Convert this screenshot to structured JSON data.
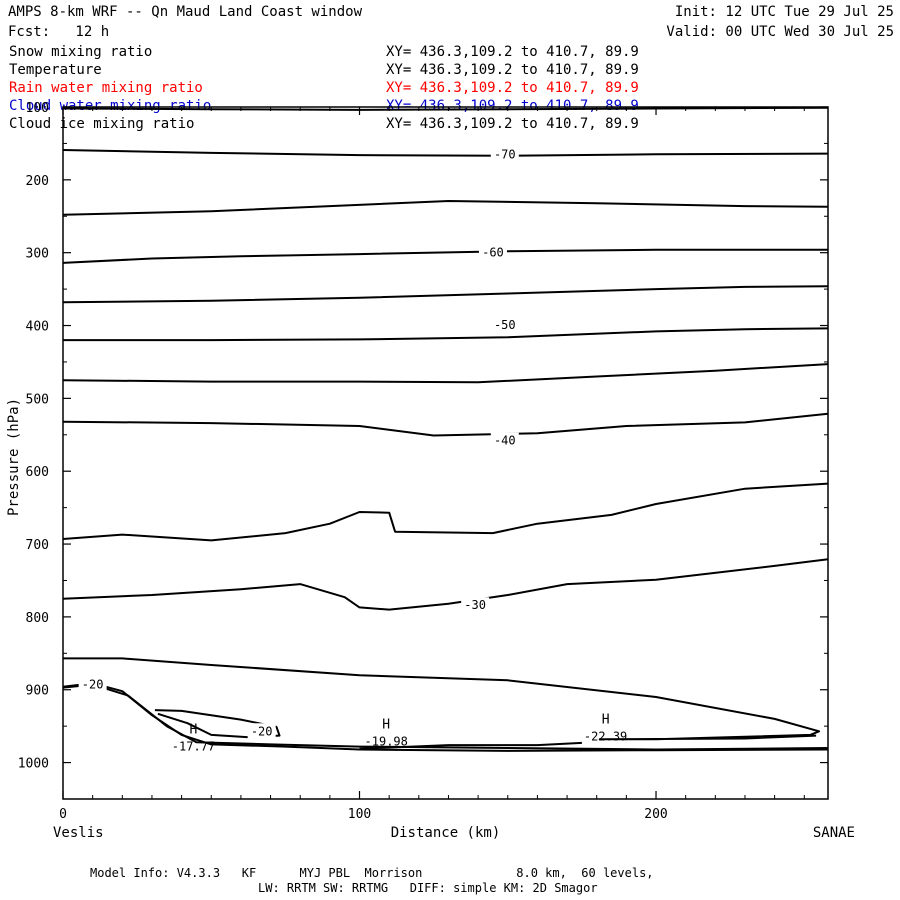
{
  "header": {
    "title": "AMPS 8-km WRF -- Qn Maud Land Coast window",
    "init": "Init: 12 UTC Tue 29 Jul 25",
    "fcst": "Fcst:   12 h",
    "valid": "Valid: 00 UTC Wed 30 Jul 25"
  },
  "legend": [
    {
      "name": "Snow mixing ratio",
      "xy": "XY= 436.3,109.2 to 410.7, 89.9",
      "color": "#000000"
    },
    {
      "name": "Temperature",
      "xy": "XY= 436.3,109.2 to 410.7, 89.9",
      "color": "#000000"
    },
    {
      "name": "Rain water mixing ratio",
      "xy": "XY= 436.3,109.2 to 410.7, 89.9",
      "color": "#ff0000"
    },
    {
      "name": "Cloud water mixing ratio",
      "xy": "XY= 436.3,109.2 to 410.7, 89.9",
      "color": "#0000cc"
    },
    {
      "name": "Cloud ice mixing ratio",
      "xy": "XY= 436.3,109.2 to 410.7, 89.9",
      "color": "#000000"
    }
  ],
  "footer": {
    "line1": "Model Info: V4.3.3   KF      MYJ PBL  Morrison             8.0 km,  60 levels,",
    "line2": "LW: RRTM SW: RRTMG   DIFF: simple KM: 2D Smagor"
  },
  "chart_data": {
    "type": "line",
    "xlabel": "Distance (km)",
    "ylabel": "Pressure (hPa)",
    "x_range": [
      0,
      258
    ],
    "y_range": [
      100,
      1050
    ],
    "y_reversed": true,
    "x_ticks": [
      0,
      100,
      200
    ],
    "y_ticks": [
      100,
      200,
      300,
      400,
      500,
      600,
      700,
      800,
      900,
      1000
    ],
    "x_left_label": "Veslis",
    "x_right_label": "SANAE",
    "contour_labels": [
      {
        "text": "-70",
        "x": 149,
        "y": 165
      },
      {
        "text": "-60",
        "x": 145,
        "y": 300
      },
      {
        "text": "-50",
        "x": 149,
        "y": 399
      },
      {
        "text": "-40",
        "x": 149,
        "y": 558
      },
      {
        "text": "-30",
        "x": 139,
        "y": 784
      },
      {
        "text": "-20",
        "x": 10,
        "y": 893
      },
      {
        "text": "-20",
        "x": 67,
        "y": 957
      }
    ],
    "extrema": [
      {
        "mark": "H",
        "value": "-17.77",
        "x": 44,
        "y": 974
      },
      {
        "mark": "H",
        "value": "-19.98",
        "x": 109,
        "y": 967
      },
      {
        "mark": "H",
        "value": "-22.39",
        "x": 183,
        "y": 960
      }
    ],
    "isotherms": [
      {
        "points": [
          [
            0,
            102
          ],
          [
            50,
            103
          ],
          [
            100,
            104
          ],
          [
            150,
            103
          ],
          [
            200,
            102
          ],
          [
            258,
            101
          ]
        ]
      },
      {
        "points": [
          [
            0,
            159
          ],
          [
            50,
            163
          ],
          [
            100,
            166
          ],
          [
            150,
            167
          ],
          [
            200,
            165
          ],
          [
            258,
            164
          ]
        ]
      },
      {
        "points": [
          [
            0,
            248
          ],
          [
            50,
            243
          ],
          [
            90,
            236
          ],
          [
            130,
            229
          ],
          [
            180,
            232
          ],
          [
            230,
            236
          ],
          [
            258,
            237
          ]
        ]
      },
      {
        "points": [
          [
            0,
            314
          ],
          [
            30,
            308
          ],
          [
            60,
            305
          ],
          [
            100,
            302
          ],
          [
            150,
            298
          ],
          [
            200,
            296
          ],
          [
            258,
            296
          ]
        ]
      },
      {
        "points": [
          [
            0,
            368
          ],
          [
            50,
            366
          ],
          [
            100,
            362
          ],
          [
            150,
            356
          ],
          [
            200,
            350
          ],
          [
            230,
            347
          ],
          [
            258,
            346
          ]
        ]
      },
      {
        "points": [
          [
            0,
            420
          ],
          [
            50,
            420
          ],
          [
            100,
            419
          ],
          [
            150,
            416
          ],
          [
            200,
            408
          ],
          [
            230,
            405
          ],
          [
            258,
            404
          ]
        ]
      },
      {
        "points": [
          [
            0,
            475
          ],
          [
            50,
            477
          ],
          [
            100,
            477
          ],
          [
            140,
            478
          ],
          [
            180,
            470
          ],
          [
            220,
            462
          ],
          [
            258,
            453
          ]
        ]
      },
      {
        "points": [
          [
            0,
            532
          ],
          [
            50,
            534
          ],
          [
            100,
            538
          ],
          [
            125,
            551
          ],
          [
            160,
            548
          ],
          [
            190,
            538
          ],
          [
            230,
            533
          ],
          [
            258,
            521
          ]
        ]
      },
      {
        "points": [
          [
            0,
            693
          ],
          [
            20,
            687
          ],
          [
            50,
            695
          ],
          [
            75,
            685
          ],
          [
            90,
            672
          ],
          [
            100,
            656
          ],
          [
            110,
            657
          ],
          [
            112,
            683
          ],
          [
            145,
            685
          ],
          [
            160,
            672
          ],
          [
            185,
            660
          ],
          [
            200,
            645
          ],
          [
            230,
            624
          ],
          [
            258,
            617
          ]
        ]
      },
      {
        "points": [
          [
            0,
            775
          ],
          [
            30,
            770
          ],
          [
            60,
            762
          ],
          [
            80,
            755
          ],
          [
            95,
            773
          ],
          [
            100,
            787
          ],
          [
            110,
            790
          ],
          [
            130,
            782
          ],
          [
            150,
            770
          ],
          [
            170,
            755
          ],
          [
            200,
            749
          ],
          [
            240,
            730
          ],
          [
            258,
            721
          ]
        ]
      },
      {
        "points": [
          [
            0,
            857
          ],
          [
            20,
            857
          ],
          [
            50,
            866
          ],
          [
            100,
            880
          ],
          [
            150,
            887
          ],
          [
            200,
            910
          ],
          [
            240,
            940
          ],
          [
            255,
            957
          ],
          [
            252,
            962
          ],
          [
            200,
            968
          ],
          [
            181,
            968
          ],
          [
            230,
            967
          ],
          [
            254,
            963
          ]
        ]
      },
      {
        "points": [
          [
            0,
            896
          ],
          [
            10,
            891
          ],
          [
            20,
            902
          ],
          [
            30,
            935
          ],
          [
            40,
            962
          ],
          [
            50,
            975
          ],
          [
            75,
            978
          ],
          [
            100,
            982
          ],
          [
            150,
            984
          ],
          [
            200,
            983
          ],
          [
            258,
            982
          ]
        ]
      },
      {
        "points": [
          [
            0,
            897
          ],
          [
            10,
            893
          ],
          [
            22,
            908
          ],
          [
            35,
            950
          ],
          [
            45,
            972
          ],
          [
            70,
            975
          ],
          [
            100,
            978
          ],
          [
            150,
            980
          ],
          [
            200,
            982
          ],
          [
            258,
            980
          ]
        ]
      },
      {
        "points": [
          [
            31,
            928
          ],
          [
            40,
            929
          ],
          [
            60,
            941
          ],
          [
            72,
            951
          ],
          [
            73,
            963
          ],
          [
            62,
            965
          ],
          [
            50,
            962
          ],
          [
            42,
            946
          ],
          [
            32,
            933
          ]
        ]
      },
      {
        "points": [
          [
            100,
            981
          ],
          [
            130,
            976
          ],
          [
            160,
            976
          ],
          [
            175,
            973
          ]
        ]
      }
    ]
  }
}
